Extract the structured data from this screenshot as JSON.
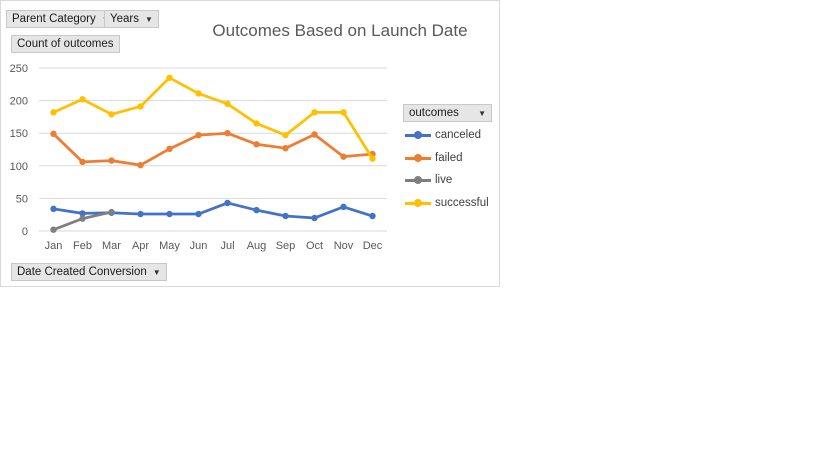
{
  "filters": {
    "parent_category": "Parent Category",
    "years": "Years"
  },
  "value_field": "Count of outcomes",
  "axis_field": "Date Created Conversion",
  "legend_field": "outcomes",
  "colors": {
    "canceled": "#4472c4",
    "failed": "#ed7d31",
    "live": "#7f7f7f",
    "successful": "#ffc000",
    "gridline": "#d9d9d9"
  },
  "chart_data": {
    "type": "line",
    "title": "Outcomes Based on Launch Date",
    "xlabel": "",
    "ylabel": "",
    "categories": [
      "Jan",
      "Feb",
      "Mar",
      "Apr",
      "May",
      "Jun",
      "Jul",
      "Aug",
      "Sep",
      "Oct",
      "Nov",
      "Dec"
    ],
    "ylim": [
      0,
      250
    ],
    "yticks": [
      0,
      50,
      100,
      150,
      200,
      250
    ],
    "grid": true,
    "legend_position": "right",
    "series": [
      {
        "name": "canceled",
        "values": [
          34,
          27,
          28,
          26,
          26,
          26,
          43,
          32,
          23,
          20,
          37,
          23
        ]
      },
      {
        "name": "failed",
        "values": [
          149,
          106,
          108,
          101,
          126,
          147,
          150,
          133,
          127,
          148,
          114,
          118
        ]
      },
      {
        "name": "live",
        "values": [
          2,
          19,
          29,
          null,
          null,
          null,
          null,
          null,
          null,
          null,
          null,
          null
        ]
      },
      {
        "name": "successful",
        "values": [
          182,
          202,
          179,
          191,
          235,
          211,
          195,
          165,
          147,
          182,
          182,
          111
        ]
      }
    ]
  }
}
